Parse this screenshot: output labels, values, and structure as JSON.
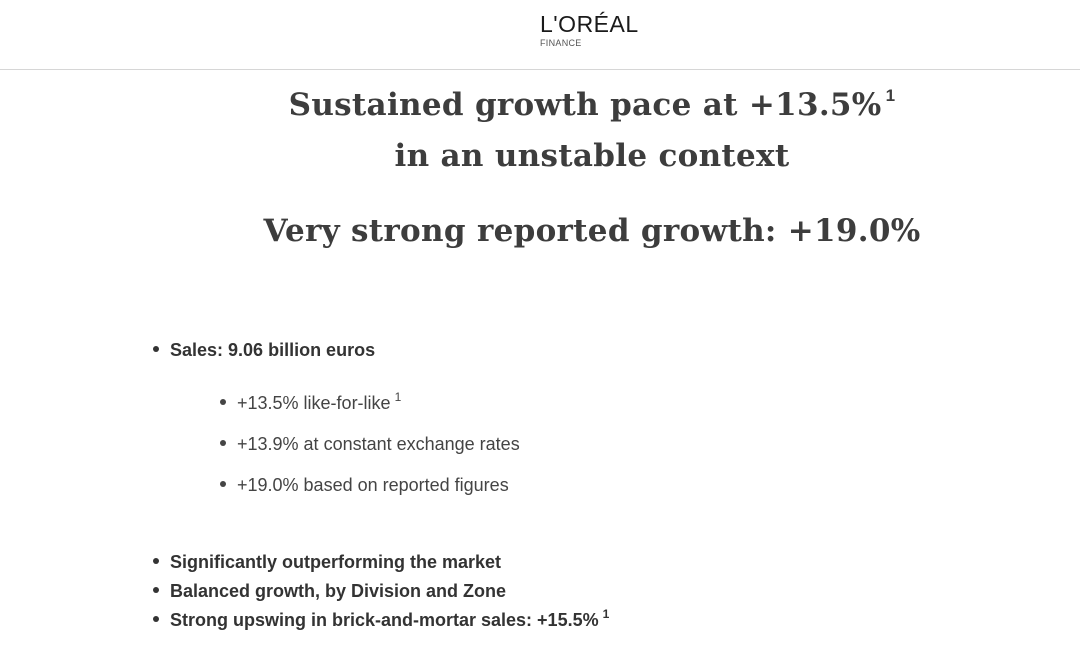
{
  "logo": {
    "brand": "L'ORÉAL",
    "subtitle": "FINANCE"
  },
  "headline": {
    "line1": "Sustained growth pace at +13.5%",
    "line1_footnote": "1",
    "line2": "in an unstable context",
    "reported": "Very strong reported growth: +19.0%"
  },
  "sales": {
    "label": "Sales: 9.06 billion euros",
    "details": [
      {
        "text": "+13.5% like-for-like",
        "footnote": "1"
      },
      {
        "text": "+13.9% at constant exchange rates"
      },
      {
        "text": "+19.0% based on reported figures"
      }
    ]
  },
  "highlights": [
    {
      "text": "Significantly outperforming the market"
    },
    {
      "text": "Balanced growth, by Division and Zone"
    },
    {
      "text": "Strong upswing in brick-and-mortar sales: +15.5%",
      "footnote": "1"
    }
  ]
}
